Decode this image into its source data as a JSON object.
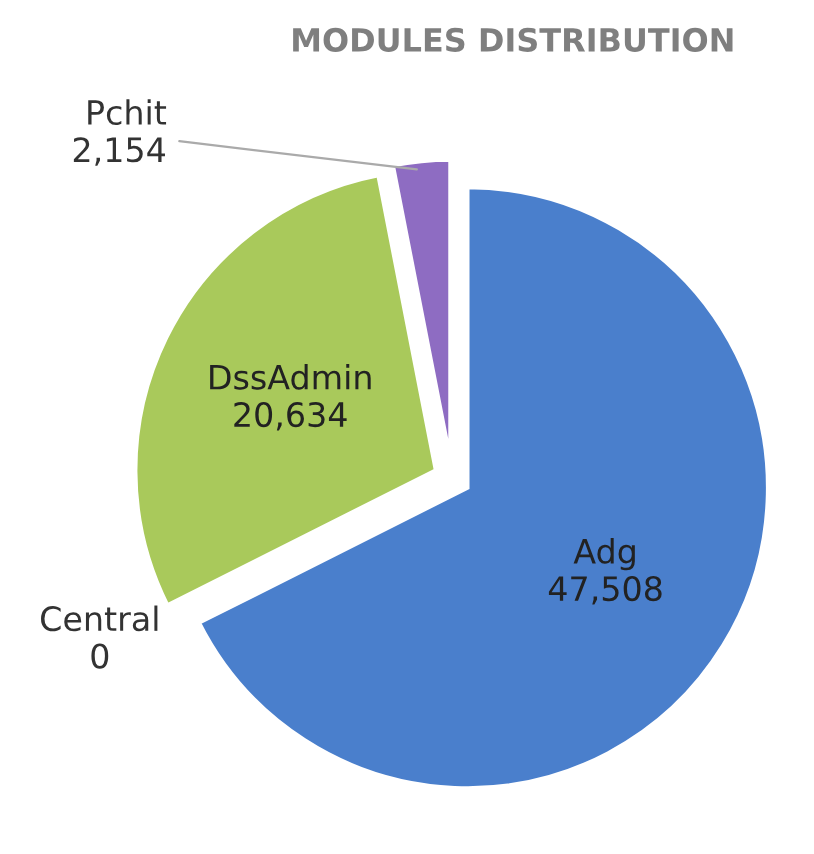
{
  "chart_data": {
    "type": "pie",
    "title": "MODULES DISTRIBUTION",
    "categories": [
      "Adg",
      "Central",
      "DssAdmin",
      "Pchit"
    ],
    "values": [
      47508,
      0,
      20634,
      2154
    ],
    "colors": [
      "#4a7fcc",
      "#c0504d",
      "#a9c95b",
      "#8e6cc2"
    ],
    "value_labels": [
      "47,508",
      "0",
      "20,634",
      "2,154"
    ],
    "legend": false
  }
}
